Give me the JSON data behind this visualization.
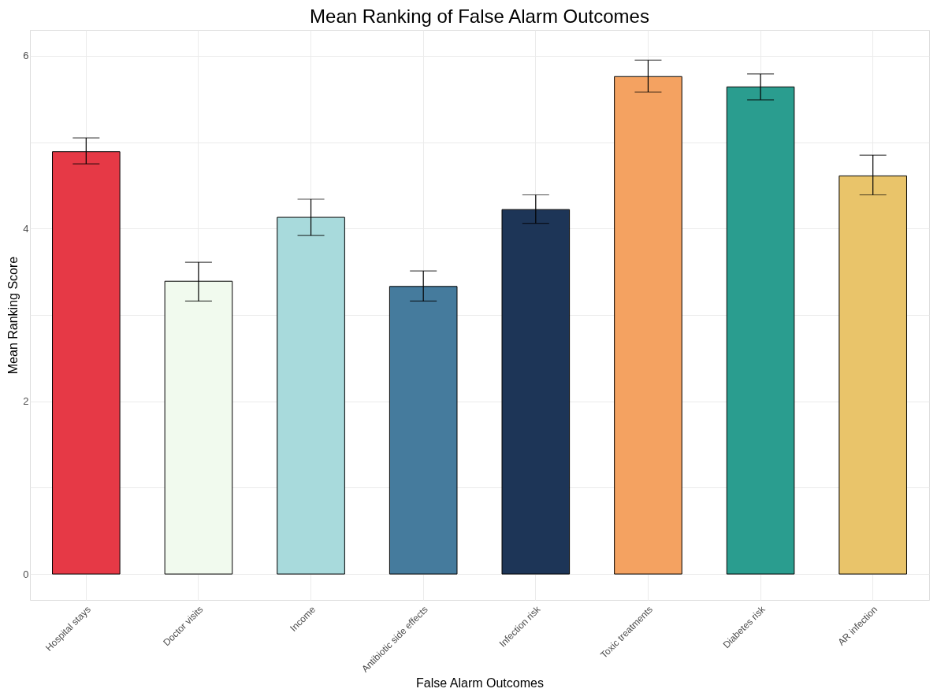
{
  "chart_data": {
    "type": "bar",
    "title": "Mean Ranking of False Alarm Outcomes",
    "xlabel": "False Alarm Outcomes",
    "ylabel": "Mean Ranking Score",
    "categories": [
      "Hospital stays",
      "Doctor visits",
      "Income",
      "Antibiotic side effects",
      "Infection risk",
      "Toxic treatments",
      "Diabetes risk",
      "AR infection"
    ],
    "values": [
      4.89,
      3.39,
      4.13,
      3.33,
      4.22,
      5.76,
      5.64,
      4.61
    ],
    "colors": [
      "#e63946",
      "#f1faee",
      "#a8dadc",
      "#457b9d",
      "#1d3557",
      "#f4a261",
      "#2a9d8f",
      "#e9c46a"
    ],
    "errors": [
      [
        4.75,
        5.05
      ],
      [
        3.16,
        3.61
      ],
      [
        3.92,
        4.34
      ],
      [
        3.16,
        3.51
      ],
      [
        4.06,
        4.39
      ],
      [
        5.58,
        5.95
      ],
      [
        5.49,
        5.79
      ],
      [
        4.39,
        4.85
      ]
    ],
    "ylim": [
      -0.3,
      6.3
    ],
    "yticks": [
      0,
      {
        "value": 1,
        "label": null
      },
      2,
      {
        "value": 3,
        "label": null
      },
      4,
      {
        "value": 5,
        "label": null
      },
      6
    ],
    "grid": true
  }
}
